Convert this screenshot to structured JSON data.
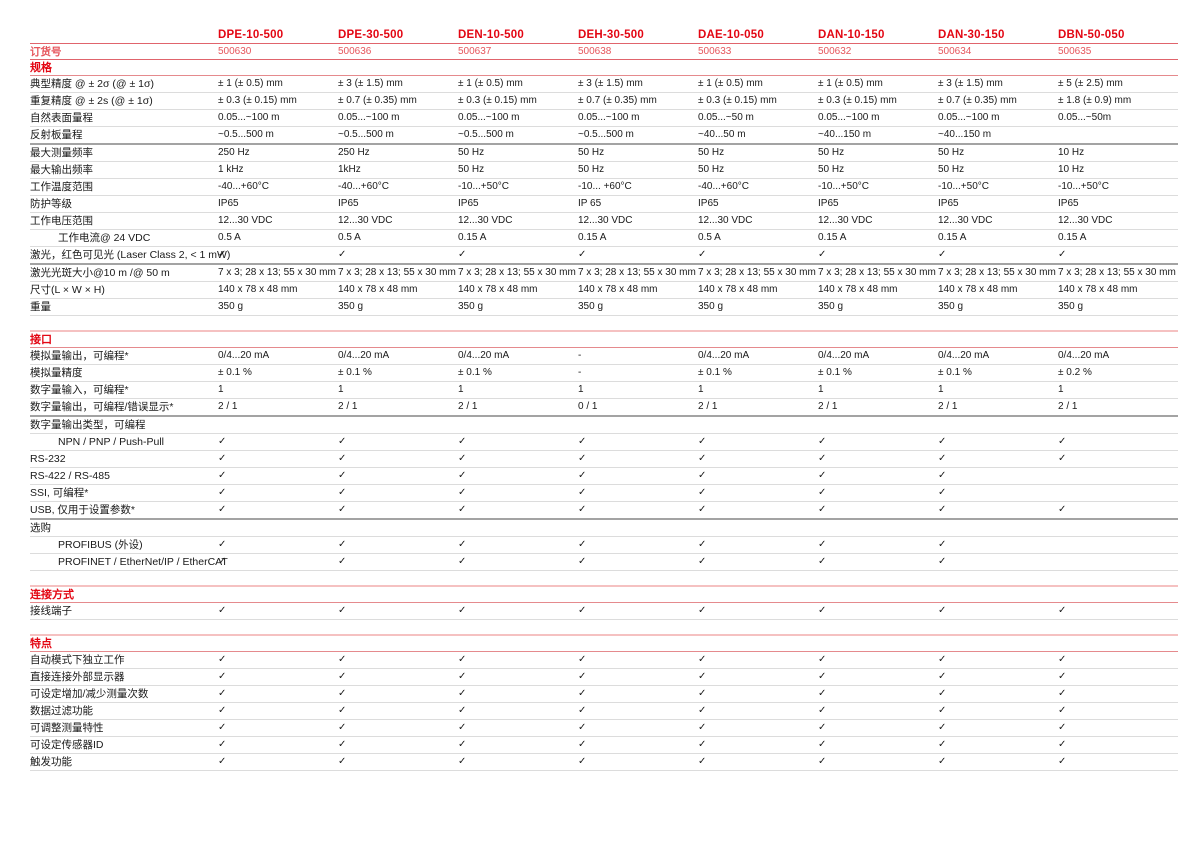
{
  "colors": {
    "accent_red": "#e30613",
    "order_value_red": "#e6565c",
    "section_line_top": "#f5c1c1",
    "section_line_bottom": "#e58a8d",
    "row_line": "#dcdcdc",
    "thick_line": "#a3a3a3",
    "text": "#191919"
  },
  "check_glyph": "✓",
  "columns": [
    "DPE-10-500",
    "DPE-30-500",
    "DEN-10-500",
    "DEH-30-500",
    "DAE-10-050",
    "DAN-10-150",
    "DAN-30-150",
    "DBN-50-050"
  ],
  "order_row": {
    "label": "订货号",
    "values": [
      "500630",
      "500636",
      "500637",
      "500638",
      "500633",
      "500632",
      "500634",
      "500635"
    ]
  },
  "sections": [
    {
      "title": "规格",
      "rows": [
        {
          "label": "典型精度 @ ± 2σ (@ ± 1σ)",
          "values": [
            "± 1 (± 0.5) mm",
            "± 3 (± 1.5) mm",
            "± 1 (± 0.5) mm",
            "± 3 (± 1.5) mm",
            "± 1 (± 0.5) mm",
            "± 1 (± 0.5) mm",
            "± 3 (± 1.5) mm",
            "± 5 (± 2.5) mm"
          ]
        },
        {
          "label": "重复精度 @ ± 2s (@ ± 1σ)",
          "values": [
            "± 0.3 (± 0.15) mm",
            "± 0.7 (± 0.35) mm",
            "± 0.3 (± 0.15) mm",
            "± 0.7 (± 0.35) mm",
            "± 0.3 (± 0.15) mm",
            "± 0.3 (± 0.15) mm",
            "± 0.7 (± 0.35) mm",
            "± 1.8 (± 0.9) mm"
          ]
        },
        {
          "label": "自然表面量程",
          "values": [
            "0.05...~100 m",
            "0.05...~100 m",
            "0.05...~100 m",
            "0.05...~100 m",
            "0.05...~50 m",
            "0.05...~100 m",
            "0.05...~100 m",
            "0.05...~50m"
          ]
        },
        {
          "label": "反射板量程",
          "thick": true,
          "values": [
            "~0.5...500 m",
            "~0.5...500 m",
            "~0.5...500 m",
            "~0.5...500 m",
            "~40...50 m",
            "~40...150 m",
            "~40...150 m",
            ""
          ]
        },
        {
          "label": "最大测量频率",
          "values": [
            "250 Hz",
            "250 Hz",
            "50 Hz",
            "50 Hz",
            "50 Hz",
            "50 Hz",
            "50 Hz",
            "10 Hz"
          ]
        },
        {
          "label": "最大输出频率",
          "values": [
            "1 kHz",
            "1kHz",
            "50 Hz",
            "50 Hz",
            "50 Hz",
            "50 Hz",
            "50 Hz",
            "10 Hz"
          ]
        },
        {
          "label": "工作温度范围",
          "values": [
            "-40...+60°C",
            "-40...+60°C",
            "-10...+50°C",
            "-10... +60°C",
            "-40...+60°C",
            "-10...+50°C",
            "-10...+50°C",
            "-10...+50°C"
          ]
        },
        {
          "label": "防护等级",
          "values": [
            "IP65",
            "IP65",
            "IP65",
            "IP 65",
            "IP65",
            "IP65",
            "IP65",
            "IP65"
          ]
        },
        {
          "label": "工作电压范围",
          "values": [
            "12...30 VDC",
            "12...30 VDC",
            "12...30 VDC",
            "12...30 VDC",
            "12...30 VDC",
            "12...30 VDC",
            "12...30 VDC",
            "12...30 VDC"
          ]
        },
        {
          "label": "工作电流@ 24 VDC",
          "indent": true,
          "values": [
            "0.5 A",
            "0.5 A",
            "0.15 A",
            "0.15 A",
            "0.5 A",
            "0.15 A",
            "0.15 A",
            "0.15 A"
          ]
        },
        {
          "label": "激光，红色可见光 (Laser Class 2, < 1 mW)",
          "thick": true,
          "values": [
            "✓",
            "✓",
            "✓",
            "✓",
            "✓",
            "✓",
            "✓",
            "✓"
          ]
        },
        {
          "label": "激光光斑大小@10 m /@ 50 m",
          "values": [
            "7 x 3; 28 x 13; 55 x 30 mm",
            "7 x 3; 28 x 13; 55 x 30 mm",
            "7 x 3; 28 x 13; 55 x 30 mm",
            "7 x 3; 28 x 13; 55 x 30 mm",
            "7 x 3; 28 x 13; 55 x 30 mm",
            "7 x 3; 28 x 13; 55 x 30 mm",
            "7 x 3; 28 x 13; 55 x 30 mm",
            "7 x 3; 28 x 13; 55 x 30 mm"
          ]
        },
        {
          "label": "尺寸(L × W × H)",
          "values": [
            "140 x 78 x 48 mm",
            "140 x 78 x 48 mm",
            "140 x 78 x 48 mm",
            "140 x 78 x 48 mm",
            "140 x 78 x 48 mm",
            "140 x 78 x 48 mm",
            "140 x 78 x 48 mm",
            "140 x 78 x 48 mm"
          ]
        },
        {
          "label": "重量",
          "values": [
            "350 g",
            "350 g",
            "350 g",
            "350 g",
            "350 g",
            "350 g",
            "350 g",
            "350 g"
          ]
        }
      ]
    },
    {
      "title": "接口",
      "rows": [
        {
          "label": "模拟量输出，可编程*",
          "values": [
            "0/4...20 mA",
            "0/4...20 mA",
            "0/4...20 mA",
            "-",
            "0/4...20 mA",
            "0/4...20 mA",
            "0/4...20 mA",
            "0/4...20 mA"
          ]
        },
        {
          "label": "模拟量精度",
          "values": [
            "± 0.1 %",
            "± 0.1 %",
            "± 0.1 %",
            "-",
            "± 0.1 %",
            "± 0.1 %",
            "± 0.1 %",
            "± 0.2 %"
          ]
        },
        {
          "label": "数字量输入，可编程*",
          "values": [
            "1",
            "1",
            "1",
            "1",
            "1",
            "1",
            "1",
            "1"
          ]
        },
        {
          "label": "数字量输出，可编程/错误显示*",
          "thick": true,
          "values": [
            "2 / 1",
            "2 / 1",
            "2 / 1",
            "0 / 1",
            "2 / 1",
            "2 / 1",
            "2 / 1",
            "2 / 1"
          ]
        },
        {
          "label": "数字量输出类型，可编程",
          "subheader": true,
          "values": [
            "",
            "",
            "",
            "",
            "",
            "",
            "",
            ""
          ]
        },
        {
          "label": "NPN / PNP / Push-Pull",
          "indent": true,
          "values": [
            "✓",
            "✓",
            "✓",
            "✓",
            "✓",
            "✓",
            "✓",
            "✓"
          ]
        },
        {
          "label": "RS-232",
          "values": [
            "✓",
            "✓",
            "✓",
            "✓",
            "✓",
            "✓",
            "✓",
            "✓"
          ]
        },
        {
          "label": "RS-422 / RS-485",
          "values": [
            "✓",
            "✓",
            "✓",
            "✓",
            "✓",
            "✓",
            "✓",
            ""
          ]
        },
        {
          "label": "SSI, 可编程*",
          "values": [
            "✓",
            "✓",
            "✓",
            "✓",
            "✓",
            "✓",
            "✓",
            ""
          ]
        },
        {
          "label": "USB, 仅用于设置参数*",
          "thick": true,
          "values": [
            "✓",
            "✓",
            "✓",
            "✓",
            "✓",
            "✓",
            "✓",
            "✓"
          ]
        },
        {
          "label": "选购",
          "subheader": true,
          "values": [
            "",
            "",
            "",
            "",
            "",
            "",
            "",
            ""
          ]
        },
        {
          "label": "PROFIBUS (外设)",
          "indent": true,
          "values": [
            "✓",
            "✓",
            "✓",
            "✓",
            "✓",
            "✓",
            "✓",
            ""
          ]
        },
        {
          "label": "PROFINET / EtherNet/IP / EtherCAT",
          "indent": true,
          "values": [
            "✓",
            "✓",
            "✓",
            "✓",
            "✓",
            "✓",
            "✓",
            ""
          ]
        }
      ]
    },
    {
      "title": "连接方式",
      "rows": [
        {
          "label": "接线端子",
          "values": [
            "✓",
            "✓",
            "✓",
            "✓",
            "✓",
            "✓",
            "✓",
            "✓"
          ]
        }
      ]
    },
    {
      "title": "特点",
      "rows": [
        {
          "label": "自动模式下独立工作",
          "values": [
            "✓",
            "✓",
            "✓",
            "✓",
            "✓",
            "✓",
            "✓",
            "✓"
          ]
        },
        {
          "label": "直接连接外部显示器",
          "values": [
            "✓",
            "✓",
            "✓",
            "✓",
            "✓",
            "✓",
            "✓",
            "✓"
          ]
        },
        {
          "label": "可设定增加/减少测量次数",
          "values": [
            "✓",
            "✓",
            "✓",
            "✓",
            "✓",
            "✓",
            "✓",
            "✓"
          ]
        },
        {
          "label": "数据过滤功能",
          "values": [
            "✓",
            "✓",
            "✓",
            "✓",
            "✓",
            "✓",
            "✓",
            "✓"
          ]
        },
        {
          "label": "可调整测量特性",
          "values": [
            "✓",
            "✓",
            "✓",
            "✓",
            "✓",
            "✓",
            "✓",
            "✓"
          ]
        },
        {
          "label": "可设定传感器ID",
          "values": [
            "✓",
            "✓",
            "✓",
            "✓",
            "✓",
            "✓",
            "✓",
            "✓"
          ]
        },
        {
          "label": "触发功能",
          "values": [
            "✓",
            "✓",
            "✓",
            "✓",
            "✓",
            "✓",
            "✓",
            "✓"
          ]
        }
      ]
    }
  ]
}
